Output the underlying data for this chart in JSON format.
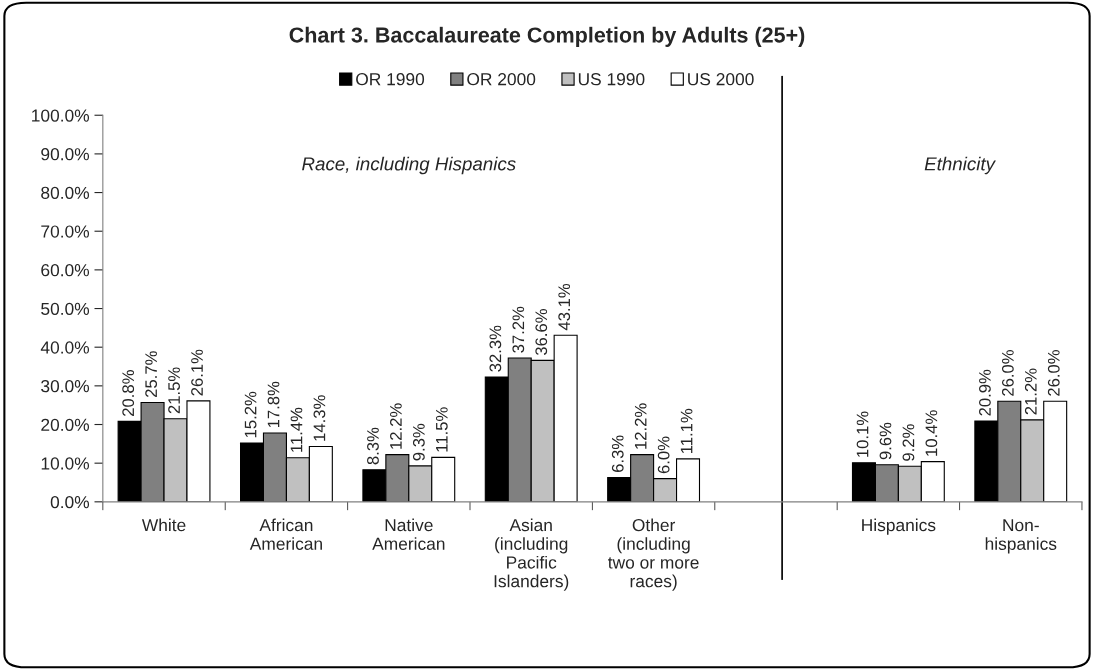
{
  "chart_data": {
    "type": "bar",
    "title": "Chart 3. Baccalaureate Completion by Adults (25+)",
    "categories": [
      "White",
      "African\nAmerican",
      "Native\nAmerican",
      "Asian\n(including\nPacific\nIslanders)",
      "Other\n(including\ntwo or more\nraces)",
      null,
      "Hispanics",
      "Non-\nhispanics"
    ],
    "series": [
      {
        "name": "OR 1990",
        "color": "#000000",
        "values": [
          20.8,
          15.2,
          8.3,
          32.3,
          6.3,
          null,
          10.1,
          20.9
        ],
        "value_labels": [
          "20.8%",
          "15.2%",
          "8.3%",
          "32.3%",
          "6.3%",
          null,
          "10.1%",
          "20.9%"
        ]
      },
      {
        "name": "OR 2000",
        "color": "#808080",
        "values": [
          25.7,
          17.8,
          12.2,
          37.2,
          12.2,
          null,
          9.6,
          26.0
        ],
        "value_labels": [
          "25.7%",
          "17.8%",
          "12.2%",
          "37.2%",
          "12.2%",
          null,
          "9.6%",
          "26.0%"
        ]
      },
      {
        "name": "US 1990",
        "color": "#c0c0c0",
        "values": [
          21.5,
          11.4,
          9.3,
          36.6,
          6.0,
          null,
          9.2,
          21.2
        ],
        "value_labels": [
          "21.5%",
          "11.4%",
          "9.3%",
          "36.6%",
          "6.0%",
          null,
          "9.2%",
          "21.2%"
        ]
      },
      {
        "name": "US 2000",
        "color": "#ffffff",
        "values": [
          26.1,
          14.3,
          11.5,
          43.1,
          11.1,
          null,
          10.4,
          26.0
        ],
        "value_labels": [
          "26.1%",
          "14.3%",
          "11.5%",
          "43.1%",
          "11.1%",
          null,
          "10.4%",
          "26.0%"
        ]
      }
    ],
    "ylim": [
      0,
      100
    ],
    "yticks": [
      {
        "value": 0,
        "label": "0.0%"
      },
      {
        "value": 10,
        "label": "10.0%"
      },
      {
        "value": 20,
        "label": "20.0%"
      },
      {
        "value": 30,
        "label": "30.0%"
      },
      {
        "value": 40,
        "label": "40.0%"
      },
      {
        "value": 50,
        "label": "50.0%"
      },
      {
        "value": 60,
        "label": "60.0%"
      },
      {
        "value": 70,
        "label": "70.0%"
      },
      {
        "value": 80,
        "label": "80.0%"
      },
      {
        "value": 90,
        "label": "90.0%"
      },
      {
        "value": 100,
        "label": "100.0%"
      }
    ],
    "legend": "top",
    "annotations": [
      "Race, including Hispanics",
      "Ethnicity"
    ]
  }
}
